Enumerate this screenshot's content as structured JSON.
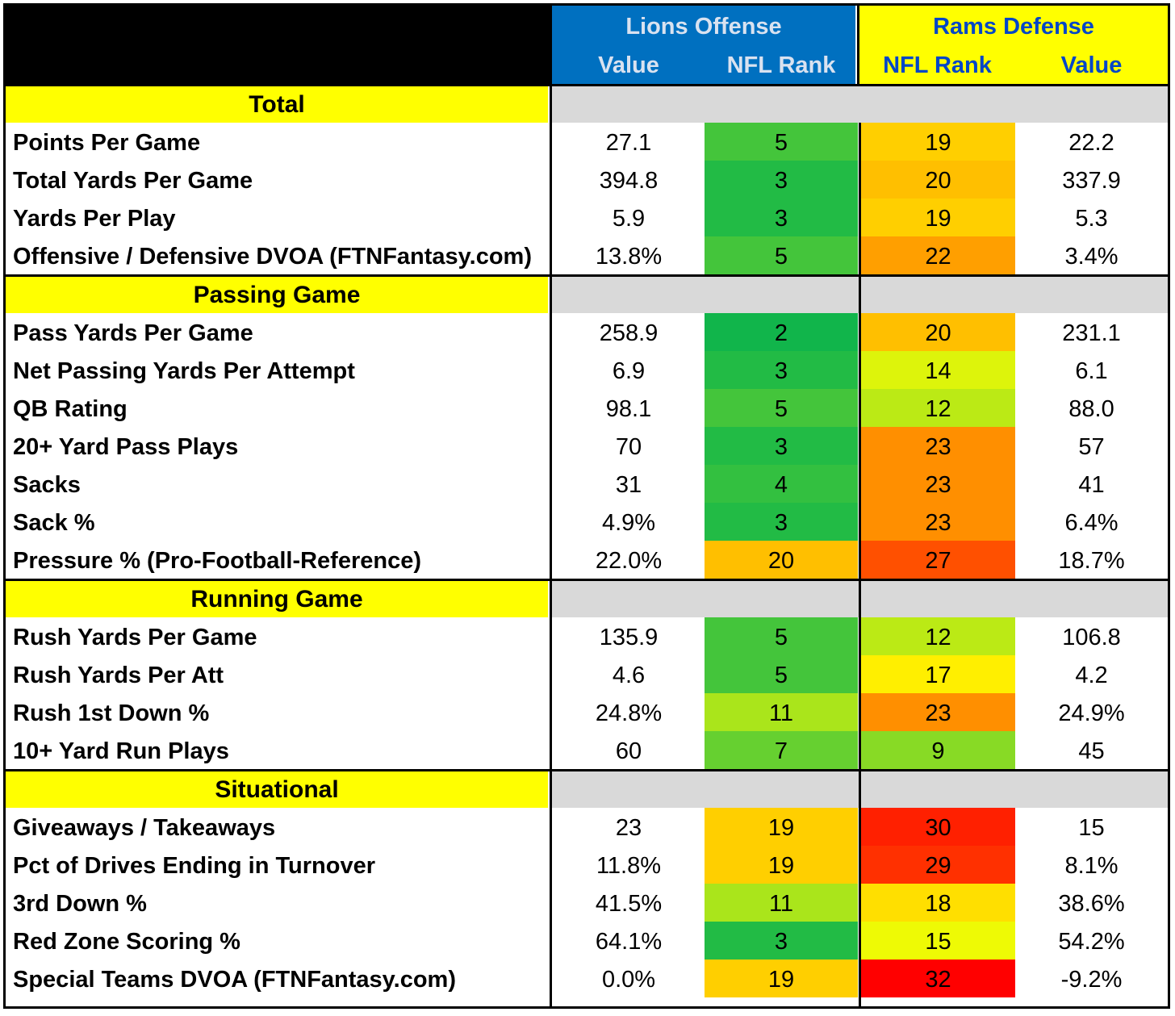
{
  "header": {
    "lions_title": "Lions Offense",
    "lions_value_label": "Value",
    "lions_rank_label": "NFL Rank",
    "rams_title": "Rams Defense",
    "rams_rank_label": "NFL Rank",
    "rams_value_label": "Value"
  },
  "colors": {
    "header_blue": "#0070c0",
    "header_yellow": "#ffff00",
    "section_gray": "#d9d9d9",
    "rank_scale": [
      "#00b050 (1st)",
      "#ffff00 (16th)",
      "#ff0000 (32nd)"
    ]
  },
  "sections": [
    {
      "title": "Total",
      "rows": [
        {
          "label": "Points Per Game",
          "lions_value": "27.1",
          "lions_rank": "5",
          "rams_rank": "19",
          "rams_value": "22.2"
        },
        {
          "label": "Total Yards Per Game",
          "lions_value": "394.8",
          "lions_rank": "3",
          "rams_rank": "20",
          "rams_value": "337.9"
        },
        {
          "label": "Yards Per Play",
          "lions_value": "5.9",
          "lions_rank": "3",
          "rams_rank": "19",
          "rams_value": "5.3"
        },
        {
          "label": "Offensive / Defensive DVOA (FTNFantasy.com)",
          "lions_value": "13.8%",
          "lions_rank": "5",
          "rams_rank": "22",
          "rams_value": "3.4%"
        }
      ]
    },
    {
      "title": "Passing Game",
      "rows": [
        {
          "label": "Pass Yards Per Game",
          "lions_value": "258.9",
          "lions_rank": "2",
          "rams_rank": "20",
          "rams_value": "231.1"
        },
        {
          "label": "Net Passing Yards Per Attempt",
          "lions_value": "6.9",
          "lions_rank": "3",
          "rams_rank": "14",
          "rams_value": "6.1"
        },
        {
          "label": "QB Rating",
          "lions_value": "98.1",
          "lions_rank": "5",
          "rams_rank": "12",
          "rams_value": "88.0"
        },
        {
          "label": "20+ Yard Pass Plays",
          "lions_value": "70",
          "lions_rank": "3",
          "rams_rank": "23",
          "rams_value": "57"
        },
        {
          "label": "Sacks",
          "lions_value": "31",
          "lions_rank": "4",
          "rams_rank": "23",
          "rams_value": "41"
        },
        {
          "label": "Sack %",
          "lions_value": "4.9%",
          "lions_rank": "3",
          "rams_rank": "23",
          "rams_value": "6.4%"
        },
        {
          "label": "Pressure % (Pro-Football-Reference)",
          "lions_value": "22.0%",
          "lions_rank": "20",
          "rams_rank": "27",
          "rams_value": "18.7%"
        }
      ]
    },
    {
      "title": "Running Game",
      "rows": [
        {
          "label": "Rush Yards Per Game",
          "lions_value": "135.9",
          "lions_rank": "5",
          "rams_rank": "12",
          "rams_value": "106.8"
        },
        {
          "label": "Rush Yards Per Att",
          "lions_value": "4.6",
          "lions_rank": "5",
          "rams_rank": "17",
          "rams_value": "4.2"
        },
        {
          "label": "Rush 1st Down %",
          "lions_value": "24.8%",
          "lions_rank": "11",
          "rams_rank": "23",
          "rams_value": "24.9%"
        },
        {
          "label": "10+ Yard Run Plays",
          "lions_value": "60",
          "lions_rank": "7",
          "rams_rank": "9",
          "rams_value": "45"
        }
      ]
    },
    {
      "title": "Situational",
      "rows": [
        {
          "label": "Giveaways / Takeaways",
          "lions_value": "23",
          "lions_rank": "19",
          "rams_rank": "30",
          "rams_value": "15"
        },
        {
          "label": "Pct of Drives Ending in Turnover",
          "lions_value": "11.8%",
          "lions_rank": "19",
          "rams_rank": "29",
          "rams_value": "8.1%"
        },
        {
          "label": "3rd Down %",
          "lions_value": "41.5%",
          "lions_rank": "11",
          "rams_rank": "18",
          "rams_value": "38.6%"
        },
        {
          "label": "Red Zone Scoring %",
          "lions_value": "64.1%",
          "lions_rank": "3",
          "rams_rank": "15",
          "rams_value": "54.2%"
        },
        {
          "label": "Special Teams DVOA  (FTNFantasy.com)",
          "lions_value": "0.0%",
          "lions_rank": "19",
          "rams_rank": "32",
          "rams_value": "-9.2%"
        }
      ]
    }
  ]
}
